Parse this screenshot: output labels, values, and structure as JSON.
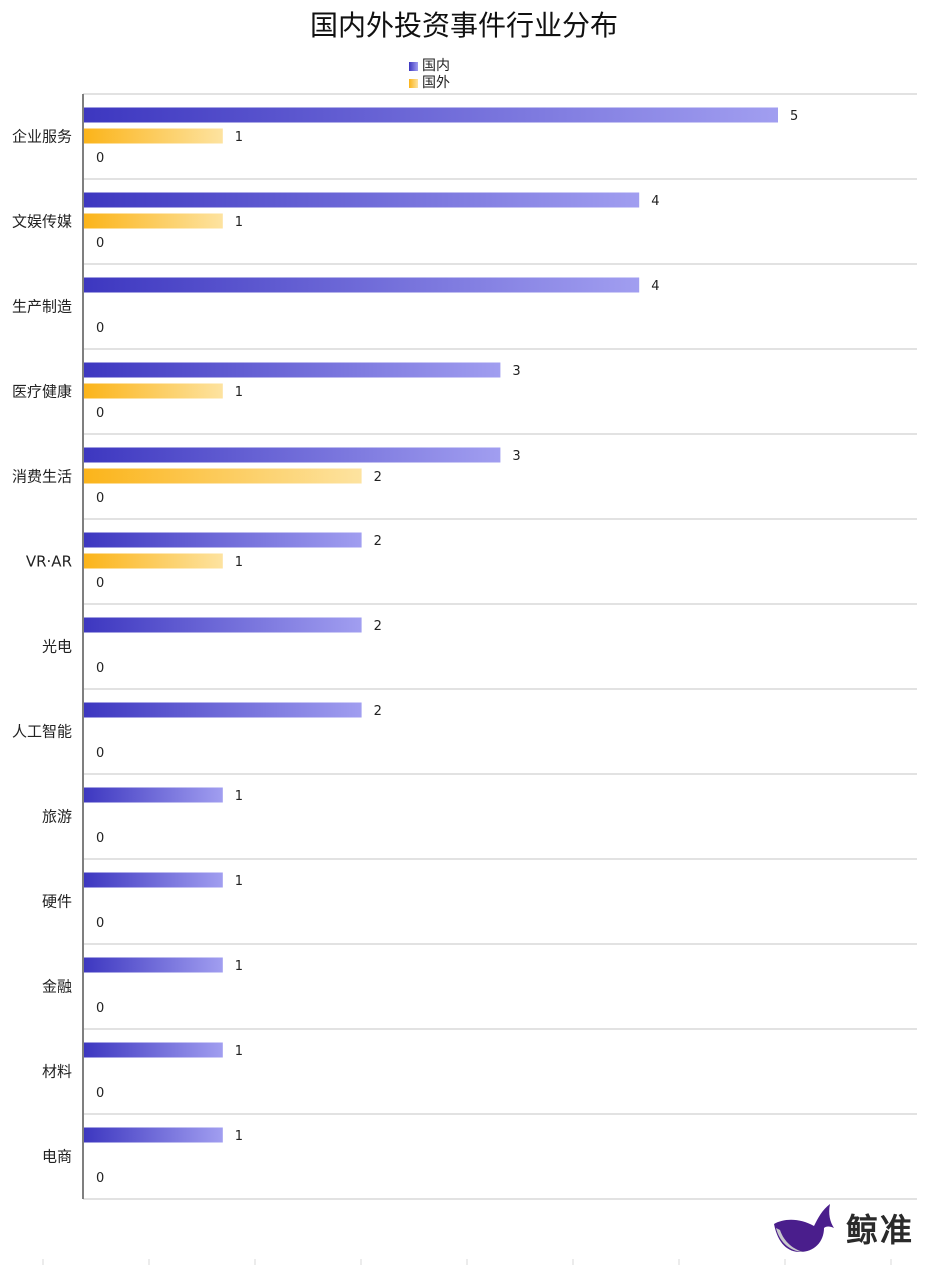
{
  "chart_data": {
    "type": "bar",
    "orientation": "horizontal",
    "title": "国内外投资事件行业分布",
    "categories": [
      "企业服务",
      "文娱传媒",
      "生产制造",
      "医疗健康",
      "消费生活",
      "VR·AR",
      "光电",
      "人工智能",
      "旅游",
      "硬件",
      "金融",
      "材料",
      "电商"
    ],
    "series": [
      {
        "name": "国内",
        "values": [
          5,
          4,
          4,
          3,
          3,
          2,
          2,
          2,
          1,
          1,
          1,
          1,
          1
        ]
      },
      {
        "name": "国外",
        "values": [
          1,
          1,
          null,
          1,
          2,
          1,
          null,
          null,
          null,
          null,
          null,
          null,
          null
        ]
      },
      {
        "name": "",
        "values": [
          0,
          0,
          0,
          0,
          0,
          0,
          0,
          0,
          0,
          0,
          0,
          0,
          0
        ]
      }
    ],
    "xlim": [
      0,
      6
    ],
    "legend_position": "top",
    "colors": {
      "domestic_start": "#3d37c0",
      "domestic_end": "#a19ef0",
      "foreign_start": "#fbb41a",
      "foreign_end": "#fde3a0",
      "grid": "#d9d9d9",
      "axis": "#7f7f7f"
    }
  },
  "brand": {
    "name": "鲸准",
    "icon": "whale-logo-icon"
  }
}
